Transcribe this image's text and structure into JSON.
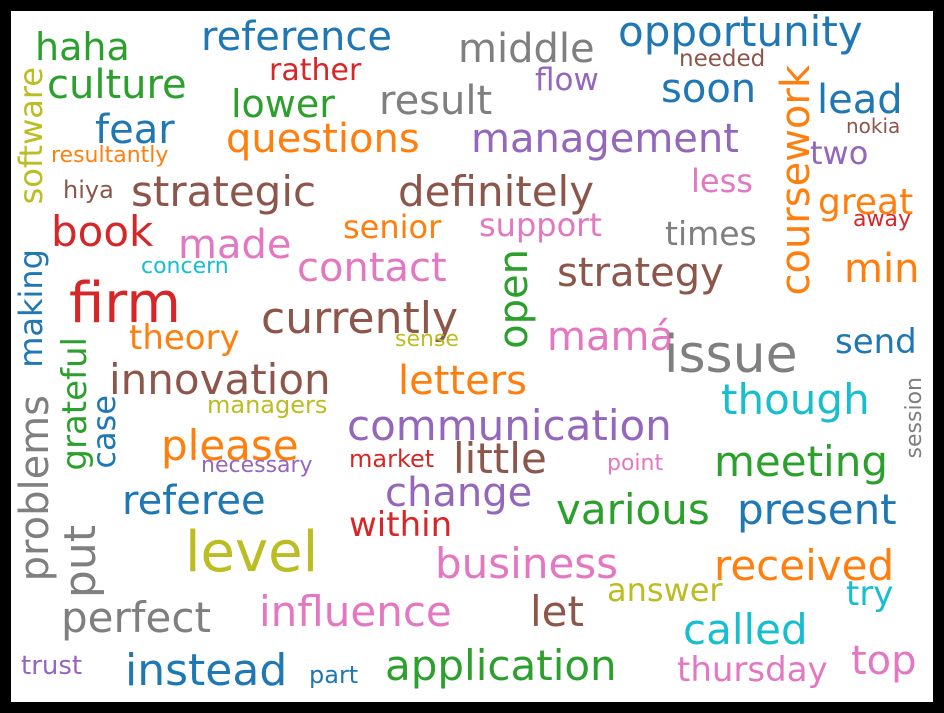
{
  "palette": {
    "blue": "#1f77b4",
    "orange": "#ff7f0e",
    "green": "#2ca02c",
    "red": "#d62728",
    "purple": "#9467bd",
    "brown": "#8c564b",
    "pink": "#e377c2",
    "gray": "#7f7f7f",
    "olive": "#bcbd22",
    "cyan": "#17becf"
  },
  "words": [
    "haha",
    "reference",
    "middle",
    "opportunity",
    "culture",
    "rather",
    "flow",
    "needed",
    "lower",
    "result",
    "soon",
    "coursework",
    "lead",
    "software",
    "fear",
    "questions",
    "management",
    "nokia",
    "resultantly",
    "two",
    "hiya",
    "strategic",
    "definitely",
    "less",
    "great",
    "away",
    "book",
    "senior",
    "support",
    "times",
    "made",
    "concern",
    "contact",
    "strategy",
    "min",
    "making",
    "firm",
    "open",
    "currently",
    "theory",
    "sense",
    "mamá",
    "issue",
    "send",
    "problems",
    "grateful",
    "innovation",
    "letters",
    "session",
    "case",
    "managers",
    "though",
    "communication",
    "please",
    "little",
    "meeting",
    "necessary",
    "market",
    "point",
    "referee",
    "change",
    "various",
    "present",
    "within",
    "put",
    "level",
    "business",
    "received",
    "answer",
    "try",
    "perfect",
    "influence",
    "let",
    "called",
    "trust",
    "instead",
    "part",
    "application",
    "thursday",
    "top"
  ]
}
